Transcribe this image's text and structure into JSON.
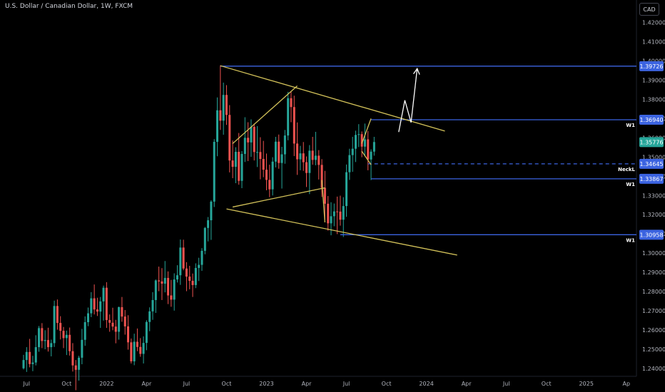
{
  "header": {
    "title": "U.S. Dollar / Canadian Dollar, 1W, FXCM",
    "currency_button": "CAD"
  },
  "colors": {
    "up": "#26a69a",
    "down": "#ef5350",
    "level": "#3b63e0",
    "trend": "#d4c35a",
    "projection": "#ffffff",
    "current_price_bg": "#26a69a"
  },
  "chart_data": {
    "type": "candlestick",
    "instrument": "U.S. Dollar / Canadian Dollar",
    "timeframe": "1W",
    "source": "FXCM",
    "ylim": [
      1.235,
      1.428
    ],
    "yticks": [
      "1.42000",
      "1.41000",
      "1.40000",
      "1.39000",
      "1.38000",
      "1.37000",
      "1.36000",
      "1.35000",
      "1.34000",
      "1.33000",
      "1.32000",
      "1.31000",
      "1.30000",
      "1.29000",
      "1.28000",
      "1.27000",
      "1.26000",
      "1.25000",
      "1.24000"
    ],
    "xticks": [
      {
        "label": "Jul",
        "week": 1
      },
      {
        "label": "Oct",
        "week": 14
      },
      {
        "label": "2022",
        "week": 27
      },
      {
        "label": "Apr",
        "week": 40
      },
      {
        "label": "Jul",
        "week": 53
      },
      {
        "label": "Oct",
        "week": 66
      },
      {
        "label": "2023",
        "week": 79
      },
      {
        "label": "Apr",
        "week": 92
      },
      {
        "label": "Jul",
        "week": 105
      },
      {
        "label": "Oct",
        "week": 118
      },
      {
        "label": "2024",
        "week": 131
      },
      {
        "label": "Apr",
        "week": 144
      },
      {
        "label": "Jul",
        "week": 157
      },
      {
        "label": "Oct",
        "week": 170
      },
      {
        "label": "2025",
        "week": 183
      },
      {
        "label": "Ap",
        "week": 196
      }
    ],
    "current_price": {
      "value": "1.35776",
      "price": 1.35776
    },
    "price_levels": [
      {
        "value": "1.39726",
        "price": 1.39726,
        "style": "solid",
        "start_week": 64,
        "note": ""
      },
      {
        "value": "1.36940",
        "price": 1.3694,
        "style": "solid",
        "start_week": 113,
        "note": "W1"
      },
      {
        "value": "1.34645",
        "price": 1.34645,
        "style": "dashed",
        "start_week": 112,
        "note": "NeckL"
      },
      {
        "value": "1.33867",
        "price": 1.33867,
        "style": "solid",
        "start_week": 113,
        "note": "W1"
      },
      {
        "value": "1.30958",
        "price": 1.30958,
        "style": "solid",
        "start_week": 103,
        "note": "W1"
      }
    ],
    "trend_lines": [
      {
        "from": [
          64,
          1.3975
        ],
        "to": [
          137,
          1.3635
        ]
      },
      {
        "from": [
          66,
          1.323
        ],
        "to": [
          141,
          1.299
        ]
      },
      {
        "from": [
          68,
          1.357
        ],
        "to": [
          89,
          1.387
        ]
      },
      {
        "from": [
          68,
          1.324
        ],
        "to": [
          98,
          1.334
        ]
      },
      {
        "from": [
          97,
          1.338
        ],
        "to": [
          98,
          1.316
        ]
      },
      {
        "from": [
          110,
          1.357
        ],
        "to": [
          113,
          1.37
        ]
      },
      {
        "from": [
          110,
          1.353
        ],
        "to": [
          113,
          1.346
        ]
      }
    ],
    "projection_path": [
      [
        122,
        1.363
      ],
      [
        124,
        1.3795
      ],
      [
        126,
        1.368
      ],
      [
        128,
        1.396
      ]
    ],
    "candles": [
      [
        1.2401,
        1.2471,
        1.2395,
        1.2444
      ],
      [
        1.2444,
        1.2511,
        1.2382,
        1.2486
      ],
      [
        1.2486,
        1.2554,
        1.2406,
        1.2423
      ],
      [
        1.2423,
        1.2466,
        1.2386,
        1.2431
      ],
      [
        1.2431,
        1.2573,
        1.2416,
        1.2511
      ],
      [
        1.2511,
        1.2621,
        1.2487,
        1.261
      ],
      [
        1.261,
        1.2636,
        1.2506,
        1.2543
      ],
      [
        1.2543,
        1.2599,
        1.25,
        1.2548
      ],
      [
        1.2548,
        1.2612,
        1.2488,
        1.2511
      ],
      [
        1.2511,
        1.255,
        1.2463,
        1.2532
      ],
      [
        1.2532,
        1.2753,
        1.2512,
        1.2725
      ],
      [
        1.2725,
        1.2759,
        1.2602,
        1.2637
      ],
      [
        1.2637,
        1.2672,
        1.2551,
        1.2596
      ],
      [
        1.2596,
        1.2616,
        1.2506,
        1.2558
      ],
      [
        1.2558,
        1.2597,
        1.247,
        1.2575
      ],
      [
        1.2575,
        1.2613,
        1.2467,
        1.249
      ],
      [
        1.249,
        1.2532,
        1.2384,
        1.2416
      ],
      [
        1.2416,
        1.2444,
        1.2287,
        1.2393
      ],
      [
        1.2393,
        1.2466,
        1.2337,
        1.2456
      ],
      [
        1.2456,
        1.2606,
        1.2422,
        1.2549
      ],
      [
        1.2549,
        1.2671,
        1.2518,
        1.2641
      ],
      [
        1.2641,
        1.2717,
        1.262,
        1.2687
      ],
      [
        1.2687,
        1.2797,
        1.2667,
        1.2765
      ],
      [
        1.2765,
        1.2837,
        1.2681,
        1.2707
      ],
      [
        1.2707,
        1.2768,
        1.2673,
        1.2696
      ],
      [
        1.2696,
        1.2772,
        1.2611,
        1.2749
      ],
      [
        1.2749,
        1.2831,
        1.2649,
        1.282
      ],
      [
        1.282,
        1.2849,
        1.2611,
        1.2652
      ],
      [
        1.2652,
        1.2681,
        1.2591,
        1.2638
      ],
      [
        1.2638,
        1.2716,
        1.2599,
        1.2618
      ],
      [
        1.2618,
        1.2653,
        1.2531,
        1.2591
      ],
      [
        1.2591,
        1.2722,
        1.255,
        1.2719
      ],
      [
        1.2719,
        1.2772,
        1.2643,
        1.267
      ],
      [
        1.267,
        1.2704,
        1.2576,
        1.2619
      ],
      [
        1.2619,
        1.2677,
        1.2498,
        1.2536
      ],
      [
        1.2536,
        1.2556,
        1.2426,
        1.2437
      ],
      [
        1.2437,
        1.2581,
        1.2417,
        1.2539
      ],
      [
        1.2539,
        1.2608,
        1.249,
        1.2512
      ],
      [
        1.2512,
        1.2558,
        1.2461,
        1.2476
      ],
      [
        1.2476,
        1.2567,
        1.2426,
        1.2533
      ],
      [
        1.2533,
        1.2651,
        1.2495,
        1.2642
      ],
      [
        1.2642,
        1.2718,
        1.2594,
        1.2697
      ],
      [
        1.2697,
        1.2797,
        1.2653,
        1.2756
      ],
      [
        1.2756,
        1.2863,
        1.2689,
        1.2858
      ],
      [
        1.2858,
        1.293,
        1.2802,
        1.2853
      ],
      [
        1.2853,
        1.2922,
        1.2756,
        1.2841
      ],
      [
        1.2841,
        1.2959,
        1.2796,
        1.2871
      ],
      [
        1.2871,
        1.2905,
        1.2735,
        1.278
      ],
      [
        1.278,
        1.2861,
        1.2721,
        1.2758
      ],
      [
        1.2758,
        1.2895,
        1.2701,
        1.2863
      ],
      [
        1.2863,
        1.2937,
        1.2847,
        1.2885
      ],
      [
        1.2885,
        1.3071,
        1.2835,
        1.3029
      ],
      [
        1.3029,
        1.307,
        1.2911,
        1.292
      ],
      [
        1.292,
        1.2953,
        1.2802,
        1.2878
      ],
      [
        1.2878,
        1.2934,
        1.2812,
        1.2856
      ],
      [
        1.2856,
        1.2894,
        1.2772,
        1.2834
      ],
      [
        1.2834,
        1.2947,
        1.2818,
        1.2923
      ],
      [
        1.2923,
        1.2976,
        1.2855,
        1.2939
      ],
      [
        1.2939,
        1.3026,
        1.2908,
        1.3012
      ],
      [
        1.3012,
        1.3136,
        1.2994,
        1.3131
      ],
      [
        1.3131,
        1.3188,
        1.3061,
        1.3171
      ],
      [
        1.3171,
        1.3275,
        1.3069,
        1.3268
      ],
      [
        1.3268,
        1.3593,
        1.324,
        1.3579
      ],
      [
        1.3579,
        1.381,
        1.3504,
        1.3743
      ],
      [
        1.3743,
        1.3977,
        1.3641,
        1.3689
      ],
      [
        1.3689,
        1.3887,
        1.3616,
        1.3823
      ],
      [
        1.3823,
        1.3874,
        1.3667,
        1.3719
      ],
      [
        1.3719,
        1.377,
        1.342,
        1.3482
      ],
      [
        1.3482,
        1.3586,
        1.339,
        1.3449
      ],
      [
        1.3449,
        1.3551,
        1.3364,
        1.3527
      ],
      [
        1.3527,
        1.3625,
        1.3356,
        1.3376
      ],
      [
        1.3376,
        1.3531,
        1.3338,
        1.3516
      ],
      [
        1.3516,
        1.3707,
        1.3474,
        1.36
      ],
      [
        1.36,
        1.3681,
        1.3479,
        1.3576
      ],
      [
        1.3576,
        1.3696,
        1.3501,
        1.3657
      ],
      [
        1.3657,
        1.3674,
        1.3482,
        1.3526
      ],
      [
        1.3526,
        1.3661,
        1.3448,
        1.3526
      ],
      [
        1.3526,
        1.3603,
        1.3384,
        1.349
      ],
      [
        1.349,
        1.3584,
        1.3395,
        1.3434
      ],
      [
        1.3434,
        1.3518,
        1.3327,
        1.3381
      ],
      [
        1.3381,
        1.346,
        1.3291,
        1.3332
      ],
      [
        1.3332,
        1.3499,
        1.33,
        1.3476
      ],
      [
        1.3476,
        1.3605,
        1.3446,
        1.358
      ],
      [
        1.358,
        1.3617,
        1.3439,
        1.3469
      ],
      [
        1.3469,
        1.3553,
        1.3336,
        1.3514
      ],
      [
        1.3514,
        1.3641,
        1.3465,
        1.3612
      ],
      [
        1.3612,
        1.3839,
        1.3587,
        1.3806
      ],
      [
        1.3806,
        1.384,
        1.3681,
        1.376
      ],
      [
        1.376,
        1.3819,
        1.3505,
        1.357
      ],
      [
        1.357,
        1.368,
        1.3407,
        1.3488
      ],
      [
        1.3488,
        1.3558,
        1.3431,
        1.3519
      ],
      [
        1.3519,
        1.3578,
        1.3428,
        1.3473
      ],
      [
        1.3473,
        1.3503,
        1.3344,
        1.3417
      ],
      [
        1.3417,
        1.3562,
        1.3307,
        1.3533
      ],
      [
        1.3533,
        1.3605,
        1.346,
        1.3485
      ],
      [
        1.3485,
        1.3631,
        1.3457,
        1.3507
      ],
      [
        1.3507,
        1.3536,
        1.3383,
        1.3459
      ],
      [
        1.3459,
        1.3489,
        1.3292,
        1.334
      ],
      [
        1.334,
        1.3428,
        1.3173,
        1.3257
      ],
      [
        1.3257,
        1.3297,
        1.3117,
        1.3155
      ],
      [
        1.3155,
        1.3265,
        1.3093,
        1.3192
      ],
      [
        1.3192,
        1.3258,
        1.314,
        1.3217
      ],
      [
        1.3217,
        1.3294,
        1.3099,
        1.3216
      ],
      [
        1.3216,
        1.3299,
        1.3143,
        1.3174
      ],
      [
        1.3174,
        1.3291,
        1.3084,
        1.3245
      ],
      [
        1.3245,
        1.3461,
        1.3189,
        1.3421
      ],
      [
        1.3421,
        1.3543,
        1.3381,
        1.351
      ],
      [
        1.351,
        1.3605,
        1.3423,
        1.3543
      ],
      [
        1.3543,
        1.3637,
        1.3474,
        1.3615
      ],
      [
        1.3615,
        1.3671,
        1.3552,
        1.3619
      ],
      [
        1.3619,
        1.3633,
        1.3499,
        1.3554
      ],
      [
        1.3554,
        1.3674,
        1.3504,
        1.3592
      ],
      [
        1.3592,
        1.3635,
        1.3431,
        1.3487
      ],
      [
        1.3487,
        1.354,
        1.338,
        1.3528
      ],
      [
        1.3528,
        1.3605,
        1.3507,
        1.3578
      ]
    ]
  }
}
